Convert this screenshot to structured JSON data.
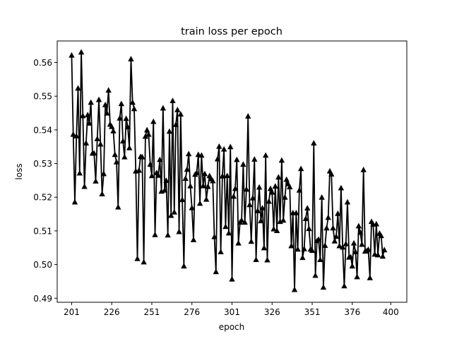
{
  "chart_data": {
    "type": "line",
    "title": "train loss per epoch",
    "xlabel": "epoch",
    "ylabel": "loss",
    "xlim": [
      192,
      410
    ],
    "ylim": [
      0.4888,
      0.5664
    ],
    "xticks": [
      201,
      226,
      251,
      276,
      301,
      326,
      351,
      376,
      400
    ],
    "yticks": [
      0.49,
      0.5,
      0.51,
      0.52,
      0.53,
      0.54,
      0.55,
      0.56
    ],
    "ytick_labels": [
      "0.49",
      "0.50",
      "0.51",
      "0.52",
      "0.53",
      "0.54",
      "0.55",
      "0.56"
    ],
    "grid": false,
    "line_color": "#000000",
    "marker": "triangle-up",
    "x_start": 201,
    "series": [
      {
        "name": "",
        "values": [
          0.5622,
          0.5387,
          0.5186,
          0.5382,
          0.5524,
          0.5272,
          0.5631,
          0.5442,
          0.5232,
          0.5361,
          0.5445,
          0.542,
          0.5482,
          0.5331,
          0.5331,
          0.5248,
          0.5374,
          0.549,
          0.5358,
          0.521,
          0.527,
          0.5475,
          0.545,
          0.5518,
          0.5417,
          0.541,
          0.5397,
          0.5327,
          0.5305,
          0.5171,
          0.5435,
          0.5478,
          0.5367,
          0.532,
          0.5434,
          0.5409,
          0.5347,
          0.5611,
          0.5482,
          0.5463,
          0.5278,
          0.5018,
          0.528,
          0.5321,
          0.532,
          0.5008,
          0.5381,
          0.54,
          0.5387,
          0.5298,
          0.5264,
          0.5425,
          0.5089,
          0.5273,
          0.5265,
          0.5312,
          0.5218,
          0.5465,
          0.5221,
          0.525,
          0.5088,
          0.5396,
          0.5146,
          0.5487,
          0.5156,
          0.5416,
          0.546,
          0.5098,
          0.5447,
          0.5193,
          0.4996,
          0.5256,
          0.5283,
          0.5329,
          0.5234,
          0.5169,
          0.5074,
          0.5268,
          0.5273,
          0.5327,
          0.5182,
          0.5325,
          0.5234,
          0.527,
          0.5194,
          0.5232,
          0.5264,
          0.5255,
          0.5249,
          0.5083,
          0.4979,
          0.5314,
          0.5351,
          0.5038,
          0.5263,
          0.5343,
          0.5113,
          0.5264,
          0.5094,
          0.535,
          0.4957,
          0.5203,
          0.5226,
          0.5312,
          0.5064,
          0.5126,
          0.5132,
          0.5298,
          0.5126,
          0.5224,
          0.5441,
          0.5178,
          0.5069,
          0.5198,
          0.5313,
          0.5015,
          0.516,
          0.523,
          0.513,
          0.5168,
          0.505,
          0.5325,
          0.5014,
          0.5188,
          0.5226,
          0.5215,
          0.5106,
          0.5233,
          0.5101,
          0.526,
          0.5128,
          0.531,
          0.5132,
          0.52,
          0.5253,
          0.524,
          0.5231,
          0.5056,
          0.5154,
          0.4926,
          0.5154,
          0.5046,
          0.5221,
          0.5285,
          0.5021,
          0.5047,
          0.5137,
          0.5168,
          0.5107,
          0.5046,
          0.5042,
          0.5361,
          0.4968,
          0.5071,
          0.5075,
          0.5015,
          0.52,
          0.4933,
          0.5057,
          0.5109,
          0.514,
          0.5278,
          0.5269,
          0.5109,
          0.507,
          0.5084,
          0.5152,
          0.5056,
          0.5228,
          0.5052,
          0.4937,
          0.5062,
          0.5186,
          0.5022,
          0.5023,
          0.4996,
          0.5064,
          0.5038,
          0.4964,
          0.5115,
          0.5096,
          0.506,
          0.5282,
          0.504,
          0.5041,
          0.5045,
          0.4961,
          0.5128,
          0.512,
          0.5031,
          0.5121,
          0.5029,
          0.5093,
          0.5086,
          0.5025,
          0.5044
        ]
      }
    ]
  }
}
